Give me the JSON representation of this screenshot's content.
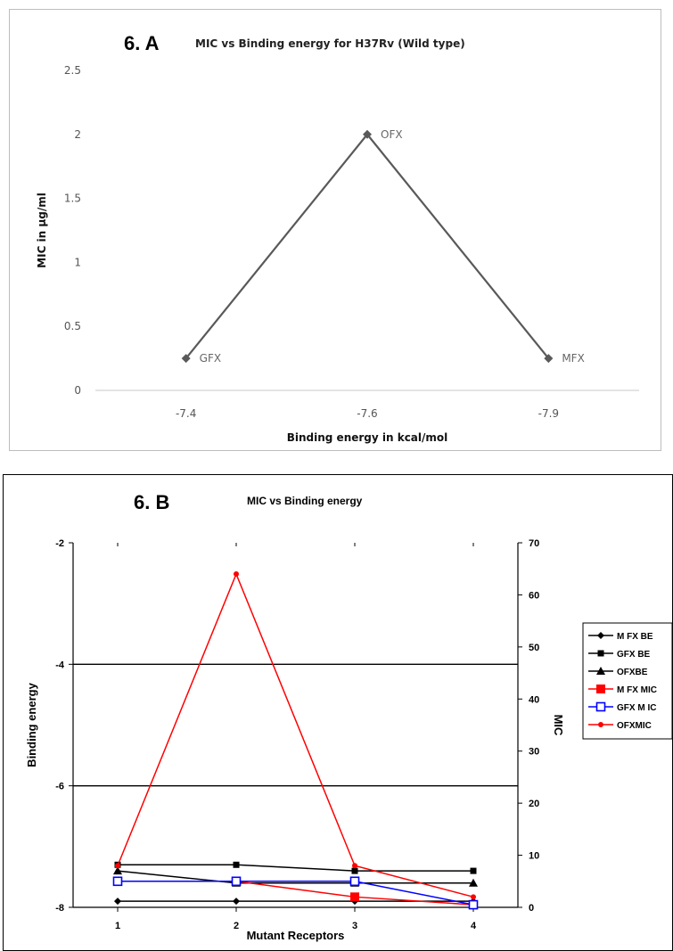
{
  "chart_data": [
    {
      "type": "line",
      "panel_label": "6. A",
      "title": "MIC vs Binding energy for H37Rv (Wild type)",
      "xlabel": "Binding energy in kcal/mol",
      "ylabel": "MIC in µg/ml",
      "categories": [
        "-7.4",
        "-7.6",
        "-7.9"
      ],
      "ylim": [
        0,
        2.5
      ],
      "yticks": [
        "0",
        "0.5",
        "1",
        "1.5",
        "2",
        "2.5"
      ],
      "series": [
        {
          "values": [
            0.25,
            2,
            0.25
          ],
          "point_labels": [
            "GFX",
            "OFX",
            "MFX"
          ],
          "color": "#595959"
        }
      ],
      "grid": false,
      "legend": "none"
    },
    {
      "type": "line",
      "panel_label": "6. B",
      "title": "MIC vs Binding energy",
      "xlabel": "Mutant Receptors",
      "ylabel": "Binding energy",
      "y2label": "MIC",
      "categories": [
        "1",
        "2",
        "3",
        "4"
      ],
      "ylim": [
        -8,
        -2
      ],
      "yticks": [
        "-8",
        "-6",
        "-4",
        "-2"
      ],
      "y2lim": [
        0,
        70
      ],
      "y2ticks": [
        "0",
        "10",
        "20",
        "30",
        "40",
        "50",
        "60",
        "70"
      ],
      "grid": true,
      "legend": "right",
      "series": [
        {
          "name": "M FX BE",
          "axis": "left",
          "values": [
            -7.9,
            -7.9,
            -7.9,
            -7.9
          ],
          "color": "#000000",
          "marker": "diamond"
        },
        {
          "name": "GFX BE",
          "axis": "left",
          "values": [
            -7.3,
            -7.3,
            -7.4,
            -7.4
          ],
          "color": "#000000",
          "marker": "square"
        },
        {
          "name": "OFXBE",
          "axis": "left",
          "values": [
            -7.4,
            -7.6,
            -7.6,
            -7.6
          ],
          "color": "#000000",
          "marker": "triangle"
        },
        {
          "name": "M FX MIC",
          "axis": "right",
          "values": [
            5,
            5,
            2,
            0.5
          ],
          "color": "#ff0000",
          "marker": "square-filled"
        },
        {
          "name": "GFX M IC",
          "axis": "right",
          "values": [
            5,
            5,
            5,
            0.5
          ],
          "color": "#0000ff",
          "marker": "square-open"
        },
        {
          "name": "OFXMIC",
          "axis": "right",
          "values": [
            8,
            64,
            8,
            2
          ],
          "color": "#ff0000",
          "marker": "star"
        }
      ]
    }
  ]
}
